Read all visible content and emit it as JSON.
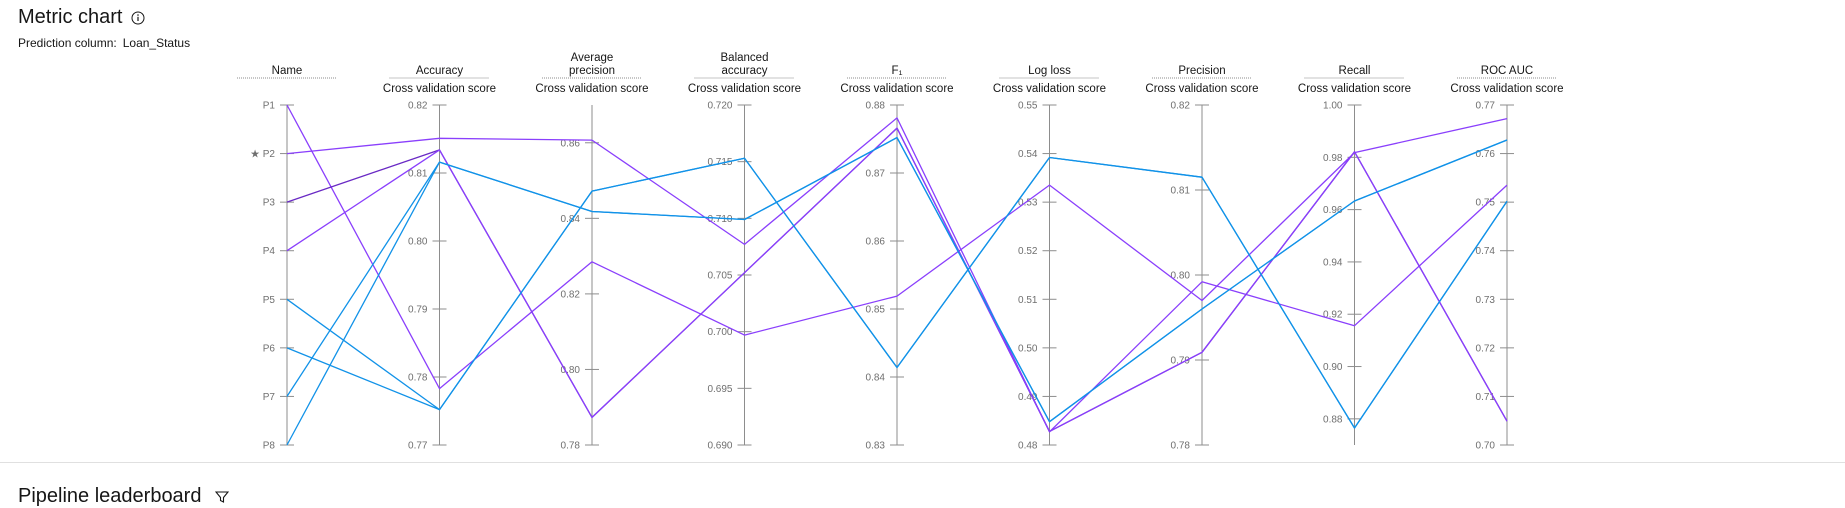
{
  "header": {
    "title": "Metric chart",
    "info_icon": "information-icon",
    "prediction_label": "Prediction column:",
    "prediction_value": "Loan_Status"
  },
  "leaderboard": {
    "title": "Pipeline leaderboard",
    "filter_icon": "filter-icon"
  },
  "colors": {
    "axis": "#8d8d8d",
    "tick_text": "#6f6f6f",
    "label_text": "#161616",
    "purple": "#8a3ffc",
    "violet": "#6929c4",
    "blue": "#1192e8"
  },
  "chart_data": {
    "type": "parallel-coordinates",
    "star_marker": "★",
    "axes": [
      {
        "name": "Name",
        "sub": "",
        "categorical": true,
        "ticks": [
          "P1",
          "P2",
          "P3",
          "P4",
          "P5",
          "P6",
          "P7",
          "P8"
        ]
      },
      {
        "name": "Accuracy",
        "sub": "Cross validation score",
        "range": [
          0.77,
          0.82
        ],
        "ticks": [
          "0.82",
          "0.81",
          "0.80",
          "0.79",
          "0.78",
          "0.77"
        ]
      },
      {
        "name": "Average precision",
        "sub": "Cross validation score",
        "range": [
          0.78,
          0.87
        ],
        "ticks": [
          "0.86",
          "0.84",
          "0.82",
          "0.80",
          "0.78"
        ]
      },
      {
        "name": "Balanced accuracy",
        "sub": "Cross validation score",
        "range": [
          0.69,
          0.72
        ],
        "ticks": [
          "0.720",
          "0.715",
          "0.710",
          "0.705",
          "0.700",
          "0.695",
          "0.690"
        ]
      },
      {
        "name": "F₁",
        "sub": "Cross validation score",
        "range": [
          0.83,
          0.88
        ],
        "ticks": [
          "0.88",
          "0.87",
          "0.86",
          "0.85",
          "0.84",
          "0.83"
        ]
      },
      {
        "name": "Log loss",
        "sub": "Cross validation score",
        "range": [
          0.48,
          0.55
        ],
        "ticks": [
          "0.55",
          "0.54",
          "0.53",
          "0.52",
          "0.51",
          "0.50",
          "0.49",
          "0.48"
        ]
      },
      {
        "name": "Precision",
        "sub": "Cross validation score",
        "range": [
          0.78,
          0.82
        ],
        "ticks": [
          "0.82",
          "0.81",
          "0.80",
          "0.79",
          "0.78"
        ]
      },
      {
        "name": "Recall",
        "sub": "Cross validation score",
        "range": [
          0.87,
          1.0
        ],
        "ticks": [
          "1.00",
          "0.98",
          "0.96",
          "0.94",
          "0.92",
          "0.90",
          "0.88"
        ]
      },
      {
        "name": "ROC AUC",
        "sub": "Cross validation score",
        "range": [
          0.7,
          0.77
        ],
        "ticks": [
          "0.77",
          "0.76",
          "0.75",
          "0.74",
          "0.73",
          "0.72",
          "0.71",
          "0.70"
        ]
      }
    ],
    "series": [
      {
        "name": "P1",
        "color": "purple",
        "values": [
          0,
          0.7783,
          0.8285,
          0.6997,
          0.8519,
          0.5335,
          0.797,
          0.9818,
          0.7672
        ]
      },
      {
        "name": "P2",
        "color": "purple",
        "values": [
          1,
          0.8151,
          0.8607,
          0.7077,
          0.8781,
          0.4827,
          0.7992,
          0.9156,
          0.7535
        ]
      },
      {
        "name": "P3",
        "color": "violet",
        "values": [
          2,
          0.8134,
          0.7873,
          0.7052,
          0.8766,
          0.4828,
          0.7909,
          0.9821,
          0.7049
        ]
      },
      {
        "name": "P4",
        "color": "purple",
        "values": [
          3,
          0.8134,
          0.7873,
          0.7052,
          0.8766,
          0.4828,
          0.7909,
          0.9821,
          0.7049
        ]
      },
      {
        "name": "P5",
        "color": "blue",
        "values": [
          4,
          0.7752,
          0.8472,
          0.7153,
          0.8414,
          0.5392,
          0.8115,
          0.8765,
          0.7502
        ]
      },
      {
        "name": "P6",
        "color": "blue",
        "values": [
          5,
          0.7752,
          0.8472,
          0.7153,
          0.8414,
          0.5392,
          0.8115,
          0.8765,
          0.7502
        ]
      },
      {
        "name": "P7",
        "color": "blue",
        "values": [
          6,
          0.8116,
          0.8418,
          0.7099,
          0.8752,
          0.4848,
          0.796,
          0.9633,
          0.7628
        ]
      },
      {
        "name": "P8",
        "color": "blue",
        "values": [
          7,
          0.8116,
          0.8418,
          0.7099,
          0.8752,
          0.4848,
          0.796,
          0.9633,
          0.7628
        ]
      }
    ],
    "starred": "P2"
  }
}
